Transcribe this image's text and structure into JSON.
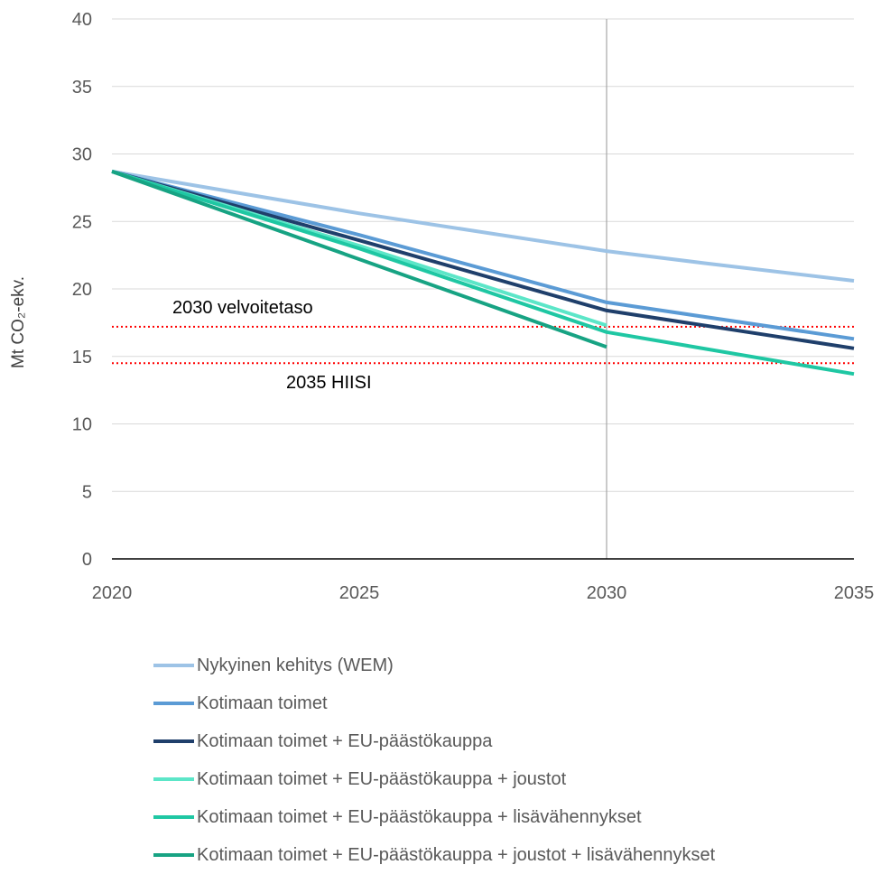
{
  "chart_data": {
    "type": "line",
    "ylabel": "Mt CO₂-ekv.",
    "x": [
      2020,
      2025,
      2030,
      2035
    ],
    "xlim": [
      2020,
      2035
    ],
    "ylim": [
      0,
      40
    ],
    "yticks": [
      0,
      5,
      10,
      15,
      20,
      25,
      30,
      35,
      40
    ],
    "xticks": [
      2020,
      2025,
      2030,
      2035
    ],
    "grid": "horizontal",
    "vertical_marker_x": 2030,
    "reference_lines": [
      {
        "label": "2030 velvoitetaso",
        "y": 17.2,
        "color": "#ff0000",
        "style": "dotted"
      },
      {
        "label": "2035 HIISI",
        "y": 14.5,
        "color": "#ff0000",
        "style": "dotted"
      }
    ],
    "series": [
      {
        "name": "Nykyinen kehitys (WEM)",
        "color": "#9dc3e6",
        "points": [
          [
            2020,
            28.7
          ],
          [
            2025,
            25.6
          ],
          [
            2030,
            22.8
          ],
          [
            2032,
            21.9
          ],
          [
            2035,
            20.6
          ]
        ]
      },
      {
        "name": "Kotimaan toimet",
        "color": "#5b9bd5",
        "points": [
          [
            2020,
            28.7
          ],
          [
            2025,
            24.0
          ],
          [
            2030,
            19.0
          ],
          [
            2035,
            16.3
          ]
        ]
      },
      {
        "name": "Kotimaan toimet + EU-päästökauppa",
        "color": "#1f3f6b",
        "points": [
          [
            2020,
            28.7
          ],
          [
            2025,
            23.6
          ],
          [
            2030,
            18.4
          ],
          [
            2035,
            15.6
          ]
        ]
      },
      {
        "name": "Kotimaan toimet + EU-päästökauppa + joustot",
        "color": "#5ce6c8",
        "points": [
          [
            2020,
            28.7
          ],
          [
            2025,
            23.2
          ],
          [
            2030,
            17.3
          ]
        ]
      },
      {
        "name": "Kotimaan toimet + EU-päästökauppa + lisävähennykset",
        "color": "#1fc7a3",
        "points": [
          [
            2020,
            28.7
          ],
          [
            2025,
            23.0
          ],
          [
            2030,
            16.8
          ],
          [
            2035,
            13.7
          ]
        ]
      },
      {
        "name": "Kotimaan toimet + EU-päästökauppa + joustot + lisävähennykset",
        "color": "#17a383",
        "points": [
          [
            2020,
            28.7
          ],
          [
            2025,
            22.2
          ],
          [
            2030,
            15.7
          ]
        ]
      }
    ]
  }
}
